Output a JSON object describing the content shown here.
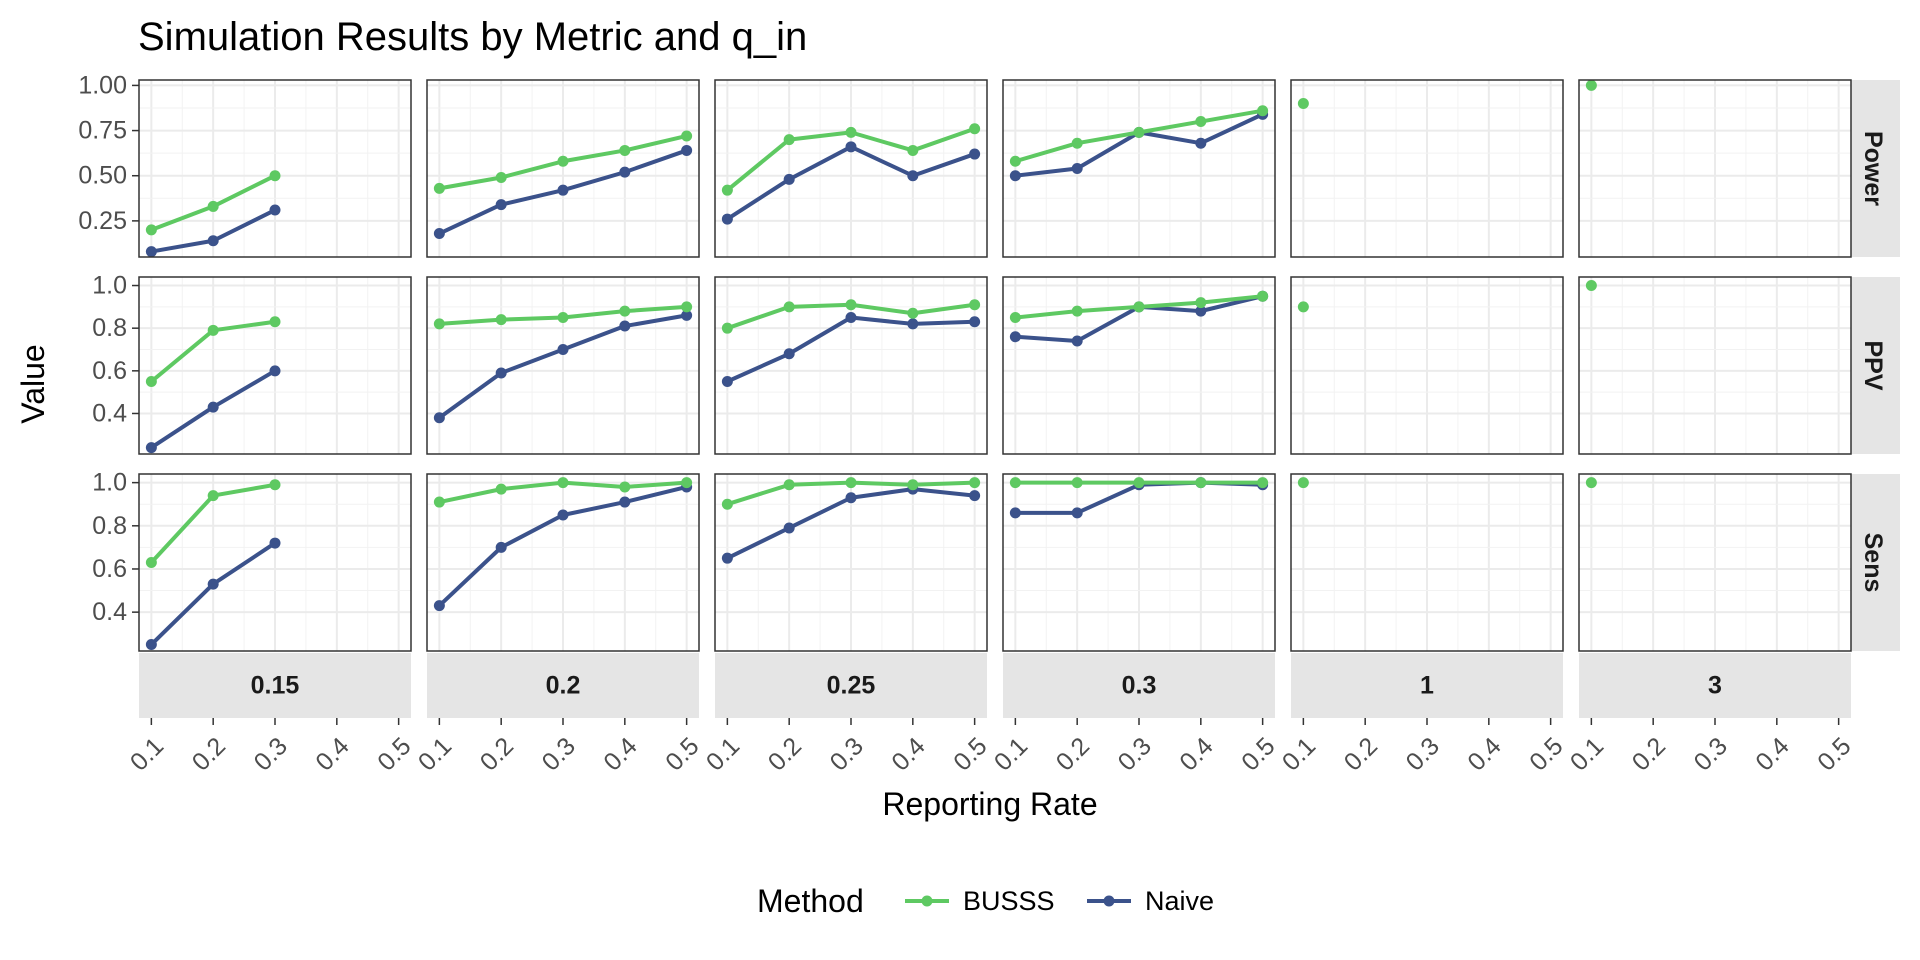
{
  "chart_data": {
    "type": "line",
    "title": "Simulation Results by Metric and q_in",
    "xlabel": "Reporting Rate",
    "ylabel": "Value",
    "x_ticks": [
      "0.1",
      "0.2",
      "0.3",
      "0.4",
      "0.5"
    ],
    "x_values": [
      0.1,
      0.2,
      0.3,
      0.4,
      0.5
    ],
    "xlim": [
      0.08,
      0.52
    ],
    "legend": {
      "title": "Method",
      "position": "bottom",
      "entries": [
        "BUSSS",
        "Naive"
      ]
    },
    "colors": {
      "BUSSS": "#5ec962",
      "Naive": "#3b528b"
    },
    "columns": [
      "0.15",
      "0.2",
      "0.25",
      "0.3",
      "1",
      "3"
    ],
    "rows": [
      {
        "label": "Power",
        "ylim": [
          0.05,
          1.03
        ],
        "ticks": [
          1.0,
          0.75,
          0.5,
          0.25
        ],
        "tick_labels": [
          "1.00",
          "0.75",
          "0.50",
          "0.25"
        ],
        "panels": [
          {
            "BUSSS": [
              0.2,
              0.33,
              0.5,
              null,
              null
            ],
            "Naive": [
              0.08,
              0.14,
              0.31,
              null,
              null
            ]
          },
          {
            "BUSSS": [
              0.43,
              0.49,
              0.58,
              0.64,
              0.72
            ],
            "Naive": [
              0.18,
              0.34,
              0.42,
              0.52,
              0.64
            ]
          },
          {
            "BUSSS": [
              0.42,
              0.7,
              0.74,
              0.64,
              0.76
            ],
            "Naive": [
              0.26,
              0.48,
              0.66,
              0.5,
              0.62
            ]
          },
          {
            "BUSSS": [
              0.58,
              0.68,
              0.74,
              0.8,
              0.86
            ],
            "Naive": [
              0.5,
              0.54,
              0.74,
              0.68,
              0.84
            ]
          },
          {
            "BUSSS": [
              0.9,
              null,
              null,
              null,
              null
            ],
            "Naive": [
              null,
              null,
              null,
              null,
              null
            ]
          },
          {
            "BUSSS": [
              1.0,
              null,
              null,
              null,
              null
            ],
            "Naive": [
              null,
              null,
              null,
              null,
              null
            ]
          }
        ]
      },
      {
        "label": "PPV",
        "ylim": [
          0.21,
          1.04
        ],
        "ticks": [
          1.0,
          0.8,
          0.6,
          0.4
        ],
        "tick_labels": [
          "1.0",
          "0.8",
          "0.6",
          "0.4"
        ],
        "panels": [
          {
            "BUSSS": [
              0.55,
              0.79,
              0.83,
              null,
              null
            ],
            "Naive": [
              0.24,
              0.43,
              0.6,
              null,
              null
            ]
          },
          {
            "BUSSS": [
              0.82,
              0.84,
              0.85,
              0.88,
              0.9
            ],
            "Naive": [
              0.38,
              0.59,
              0.7,
              0.81,
              0.86
            ]
          },
          {
            "BUSSS": [
              0.8,
              0.9,
              0.91,
              0.87,
              0.91
            ],
            "Naive": [
              0.55,
              0.68,
              0.85,
              0.82,
              0.83
            ]
          },
          {
            "BUSSS": [
              0.85,
              0.88,
              0.9,
              0.92,
              0.95
            ],
            "Naive": [
              0.76,
              0.74,
              0.9,
              0.88,
              0.95
            ]
          },
          {
            "BUSSS": [
              0.9,
              null,
              null,
              null,
              null
            ],
            "Naive": [
              null,
              null,
              null,
              null,
              null
            ]
          },
          {
            "BUSSS": [
              1.0,
              null,
              null,
              null,
              null
            ],
            "Naive": [
              null,
              null,
              null,
              null,
              null
            ]
          }
        ]
      },
      {
        "label": "Sens",
        "ylim": [
          0.22,
          1.04
        ],
        "ticks": [
          1.0,
          0.8,
          0.6,
          0.4
        ],
        "tick_labels": [
          "1.0",
          "0.8",
          "0.6",
          "0.4"
        ],
        "panels": [
          {
            "BUSSS": [
              0.63,
              0.94,
              0.99,
              null,
              null
            ],
            "Naive": [
              0.25,
              0.53,
              0.72,
              null,
              null
            ]
          },
          {
            "BUSSS": [
              0.91,
              0.97,
              1.0,
              0.98,
              1.0
            ],
            "Naive": [
              0.43,
              0.7,
              0.85,
              0.91,
              0.98
            ]
          },
          {
            "BUSSS": [
              0.9,
              0.99,
              1.0,
              0.99,
              1.0
            ],
            "Naive": [
              0.65,
              0.79,
              0.93,
              0.97,
              0.94
            ]
          },
          {
            "BUSSS": [
              1.0,
              1.0,
              1.0,
              1.0,
              1.0
            ],
            "Naive": [
              0.86,
              0.86,
              0.99,
              1.0,
              0.99
            ]
          },
          {
            "BUSSS": [
              1.0,
              null,
              null,
              null,
              null
            ],
            "Naive": [
              null,
              null,
              null,
              null,
              null
            ]
          },
          {
            "BUSSS": [
              1.0,
              null,
              null,
              null,
              null
            ],
            "Naive": [
              null,
              null,
              null,
              null,
              null
            ]
          }
        ]
      }
    ]
  }
}
